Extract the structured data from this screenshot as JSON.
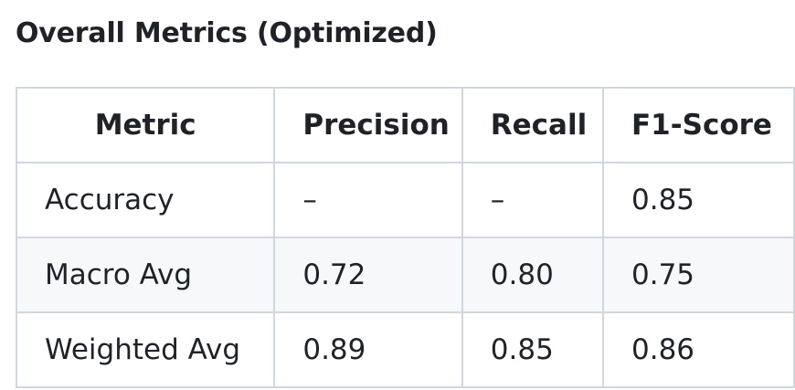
{
  "section": {
    "title": "Overall Metrics (Optimized)"
  },
  "table": {
    "headers": [
      "Metric",
      "Precision",
      "Recall",
      "F1-Score"
    ],
    "rows": [
      [
        "Accuracy",
        "–",
        "–",
        "0.85"
      ],
      [
        "Macro Avg",
        "0.72",
        "0.80",
        "0.75"
      ],
      [
        "Weighted Avg",
        "0.89",
        "0.85",
        "0.86"
      ]
    ]
  }
}
